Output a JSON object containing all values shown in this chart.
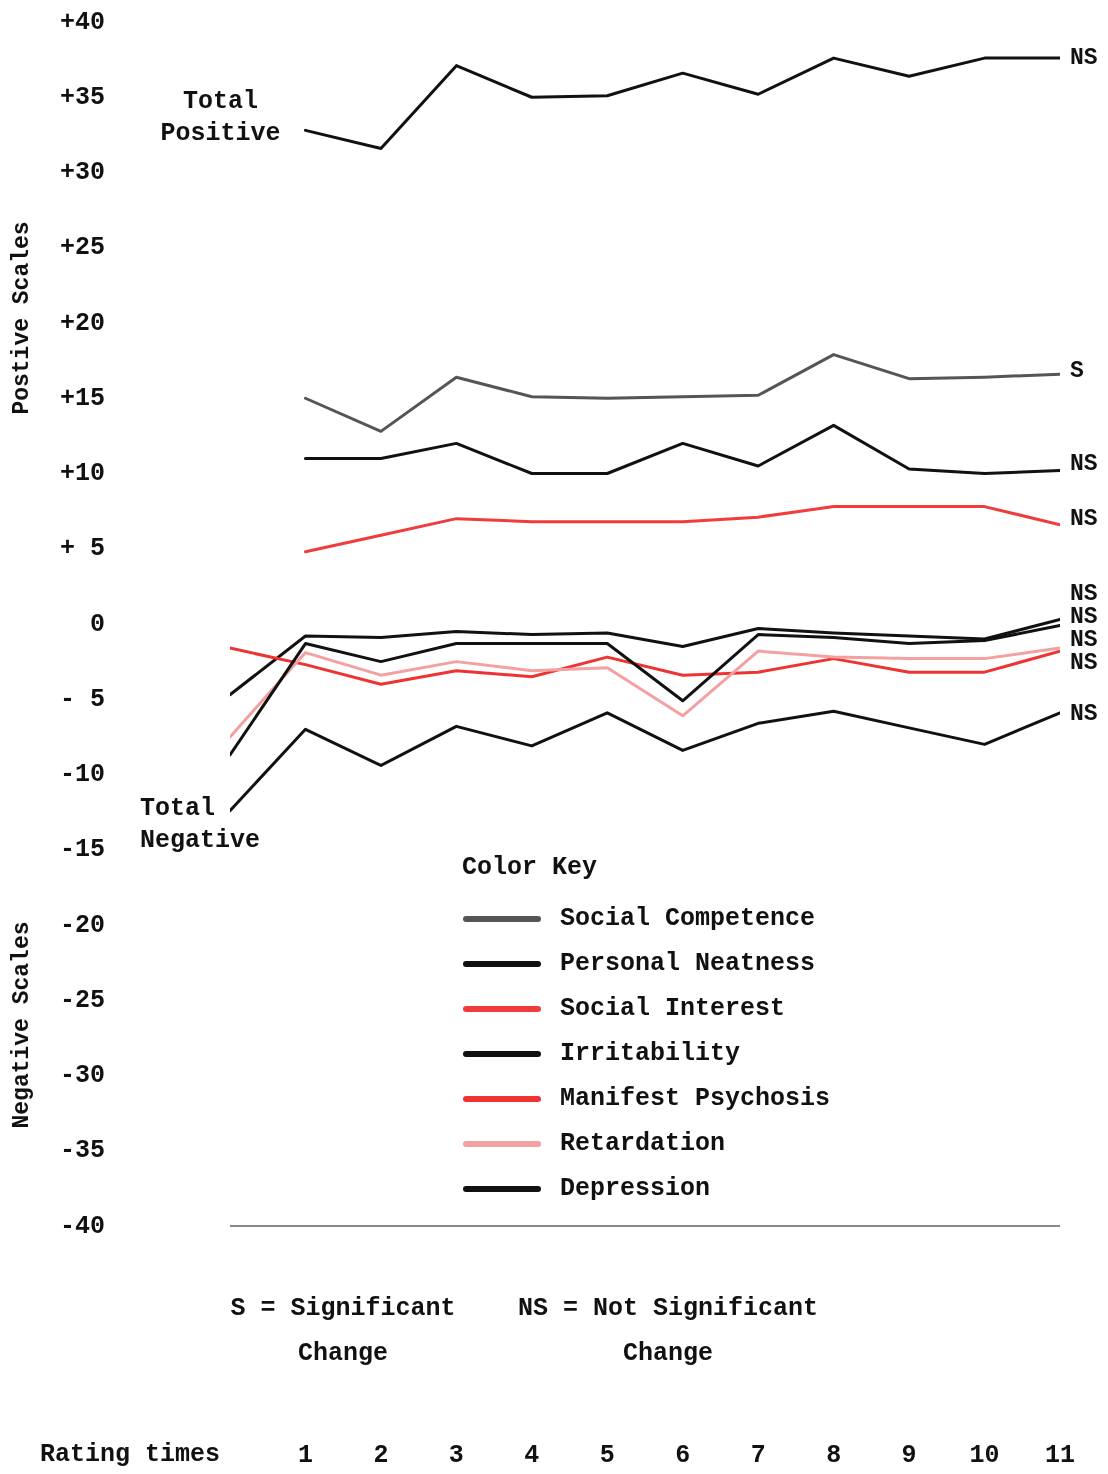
{
  "chart_data": {
    "type": "line",
    "xlabel": "Rating times",
    "ylabel": "Postive Scales",
    "legend_title": "Color Key",
    "legend": "bottom",
    "x": [
      0,
      1,
      2,
      3,
      4,
      5,
      6,
      7,
      8,
      9,
      10,
      11
    ],
    "xlim": [
      0,
      11
    ],
    "xticks": [
      1,
      2,
      3,
      4,
      5,
      6,
      7,
      8,
      9,
      10,
      11
    ],
    "ylim": [
      -40,
      40
    ],
    "yticks": [
      {
        "value": 40,
        "label": "+40"
      },
      {
        "value": 35,
        "label": "+35"
      },
      {
        "value": 30,
        "label": "+30"
      },
      {
        "value": 25,
        "label": "+25"
      },
      {
        "value": 20,
        "label": "+20"
      },
      {
        "value": 15,
        "label": "+15"
      },
      {
        "value": 10,
        "label": "+10"
      },
      {
        "value": 5,
        "label": "+ 5"
      },
      0,
      {
        "value": -5,
        "label": "- 5"
      },
      -10,
      -15,
      -20,
      -25,
      -30,
      -35,
      -40
    ],
    "series": [
      {
        "color": "#111111",
        "values": [
          null,
          32.8,
          31.6,
          37.1,
          35,
          35.1,
          36.6,
          35.2,
          37.6,
          36.4,
          37.6,
          37.6
        ]
      },
      {
        "name": "Social Competence",
        "color": "#555555",
        "values": [
          null,
          15,
          12.8,
          16.4,
          15.1,
          15,
          15.1,
          15.2,
          17.9,
          16.3,
          16.4,
          16.6
        ]
      },
      {
        "name": "Personal Neatness",
        "color": "#111111",
        "values": [
          null,
          11,
          11,
          12,
          10,
          10,
          12,
          10.5,
          13.2,
          10.3,
          10,
          10.2
        ]
      },
      {
        "name": "Social Interest",
        "color": "#f03c3c",
        "values": [
          null,
          4.8,
          5.9,
          7,
          6.8,
          6.8,
          6.8,
          7.1,
          7.8,
          7.8,
          7.8,
          6.6
        ]
      },
      {
        "name": "Irritability",
        "color": "#111111",
        "values": [
          -4.7,
          -0.8,
          -0.9,
          -0.5,
          -0.7,
          -0.6,
          -1.5,
          -0.3,
          -0.6,
          -0.8,
          -1,
          0.3
        ]
      },
      {
        "name": "Manifest Psychosis",
        "color": "#ee3333",
        "values": [
          -1.6,
          -2.7,
          -4,
          -3.1,
          -3.5,
          -2.2,
          -3.4,
          -3.2,
          -2.3,
          -3.2,
          -3.2,
          -1.8
        ]
      },
      {
        "name": "Retardation",
        "color": "#f4a0a0",
        "values": [
          -7.5,
          -1.9,
          -3.4,
          -2.5,
          -3.1,
          -2.9,
          -6.1,
          -1.8,
          -2.2,
          -2.3,
          -2.3,
          -1.6
        ]
      },
      {
        "name": "Depression",
        "color": "#111111",
        "values": [
          -8.7,
          -1.3,
          -2.5,
          -1.3,
          -1.3,
          -1.3,
          -5.1,
          -0.7,
          -0.9,
          -1.3,
          -1.1,
          -0.1
        ]
      },
      {
        "color": "#111111",
        "values": [
          -12.4,
          -7,
          -9.4,
          -6.8,
          -8.1,
          -5.9,
          -8.4,
          -6.6,
          -5.8,
          -6.9,
          -8,
          -5.9
        ]
      }
    ],
    "annotations": [
      {
        "text": "Total Positive",
        "x": 1,
        "y": 32.8
      },
      {
        "text": "Total Negative",
        "x": 0,
        "y": -12.4
      },
      {
        "text": "NS",
        "x": 11,
        "y": 37.6
      },
      {
        "text": "S",
        "x": 11,
        "y": 16.8
      },
      {
        "text": "NS",
        "x": 11,
        "y": 10.6
      },
      {
        "text": "NS",
        "x": 11,
        "y": 7
      },
      {
        "text": "NS",
        "x": 11,
        "y": 0.3
      },
      {
        "text": "NS",
        "x": 11,
        "y": -0.1
      },
      {
        "text": "NS",
        "x": 11,
        "y": -1.6
      },
      {
        "text": "NS",
        "x": 11,
        "y": -1.8
      },
      {
        "text": "NS",
        "x": 11,
        "y": -6
      },
      "Negative Scales",
      "S = Significant Change",
      "NS = Not Significant Change"
    ]
  }
}
